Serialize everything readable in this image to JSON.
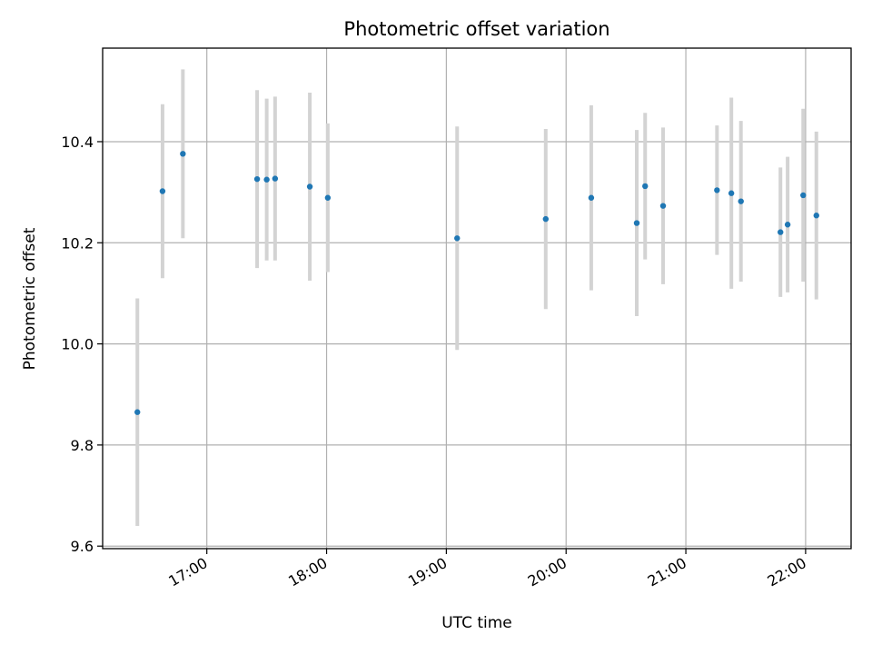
{
  "chart_data": {
    "type": "scatter",
    "title": "Photometric offset variation",
    "xlabel": "UTC time",
    "ylabel": "Photometric offset",
    "x_unit": "hours UTC",
    "xlim": [
      16.13,
      22.38
    ],
    "ylim": [
      9.595,
      10.585
    ],
    "x_ticks": [
      {
        "value": 17,
        "label": "17:00"
      },
      {
        "value": 18,
        "label": "18:00"
      },
      {
        "value": 19,
        "label": "19:00"
      },
      {
        "value": 20,
        "label": "20:00"
      },
      {
        "value": 21,
        "label": "21:00"
      },
      {
        "value": 22,
        "label": "22:00"
      }
    ],
    "y_ticks": [
      {
        "value": 9.6,
        "label": "9.6"
      },
      {
        "value": 9.8,
        "label": "9.8"
      },
      {
        "value": 10.0,
        "label": "10.0"
      },
      {
        "value": 10.2,
        "label": "10.2"
      },
      {
        "value": 10.4,
        "label": "10.4"
      }
    ],
    "grid": true,
    "colors": {
      "marker": "#1f77b4",
      "errorbar": "#d3d3d3",
      "grid": "#b0b0b0"
    },
    "points": [
      {
        "x": 16.42,
        "y": 9.865,
        "err": 0.225
      },
      {
        "x": 16.63,
        "y": 10.302,
        "err": 0.172
      },
      {
        "x": 16.8,
        "y": 10.376,
        "err": 0.167
      },
      {
        "x": 17.42,
        "y": 10.326,
        "err": 0.176
      },
      {
        "x": 17.5,
        "y": 10.325,
        "err": 0.16
      },
      {
        "x": 17.57,
        "y": 10.327,
        "err": 0.162
      },
      {
        "x": 17.86,
        "y": 10.311,
        "err": 0.186
      },
      {
        "x": 18.01,
        "y": 10.289,
        "err": 0.147
      },
      {
        "x": 19.09,
        "y": 10.209,
        "err": 0.221
      },
      {
        "x": 19.83,
        "y": 10.247,
        "err": 0.178
      },
      {
        "x": 20.21,
        "y": 10.289,
        "err": 0.183
      },
      {
        "x": 20.59,
        "y": 10.239,
        "err": 0.184
      },
      {
        "x": 20.66,
        "y": 10.312,
        "err": 0.145
      },
      {
        "x": 20.81,
        "y": 10.273,
        "err": 0.155
      },
      {
        "x": 21.26,
        "y": 10.304,
        "err": 0.128
      },
      {
        "x": 21.38,
        "y": 10.298,
        "err": 0.189
      },
      {
        "x": 21.46,
        "y": 10.282,
        "err": 0.159
      },
      {
        "x": 21.79,
        "y": 10.221,
        "err": 0.128
      },
      {
        "x": 21.85,
        "y": 10.236,
        "err": 0.134
      },
      {
        "x": 21.98,
        "y": 10.294,
        "err": 0.171
      },
      {
        "x": 22.09,
        "y": 10.254,
        "err": 0.166
      }
    ]
  }
}
